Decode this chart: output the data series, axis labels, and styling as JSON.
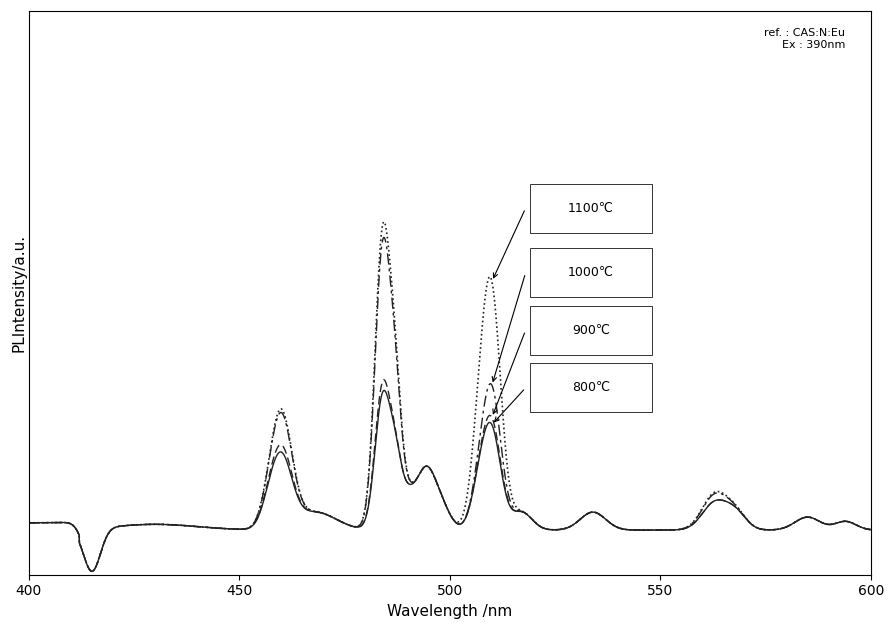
{
  "title": "",
  "xlabel": "Wavelength /nm",
  "ylabel": "PLIntensity/a.u.",
  "xlim": [
    400,
    600
  ],
  "annotation_text": "ref. : CAS:N:Eu\nEx : 390nm",
  "legend_labels": [
    "1100℃",
    "1000℃",
    "900℃",
    "800℃"
  ],
  "background_color": "#ffffff",
  "plot_bg_color": "#ffffff",
  "xticks": [
    400,
    450,
    500,
    550,
    600
  ],
  "font_size": 11,
  "legend_font_size": 9,
  "annotation_fontsize": 8
}
